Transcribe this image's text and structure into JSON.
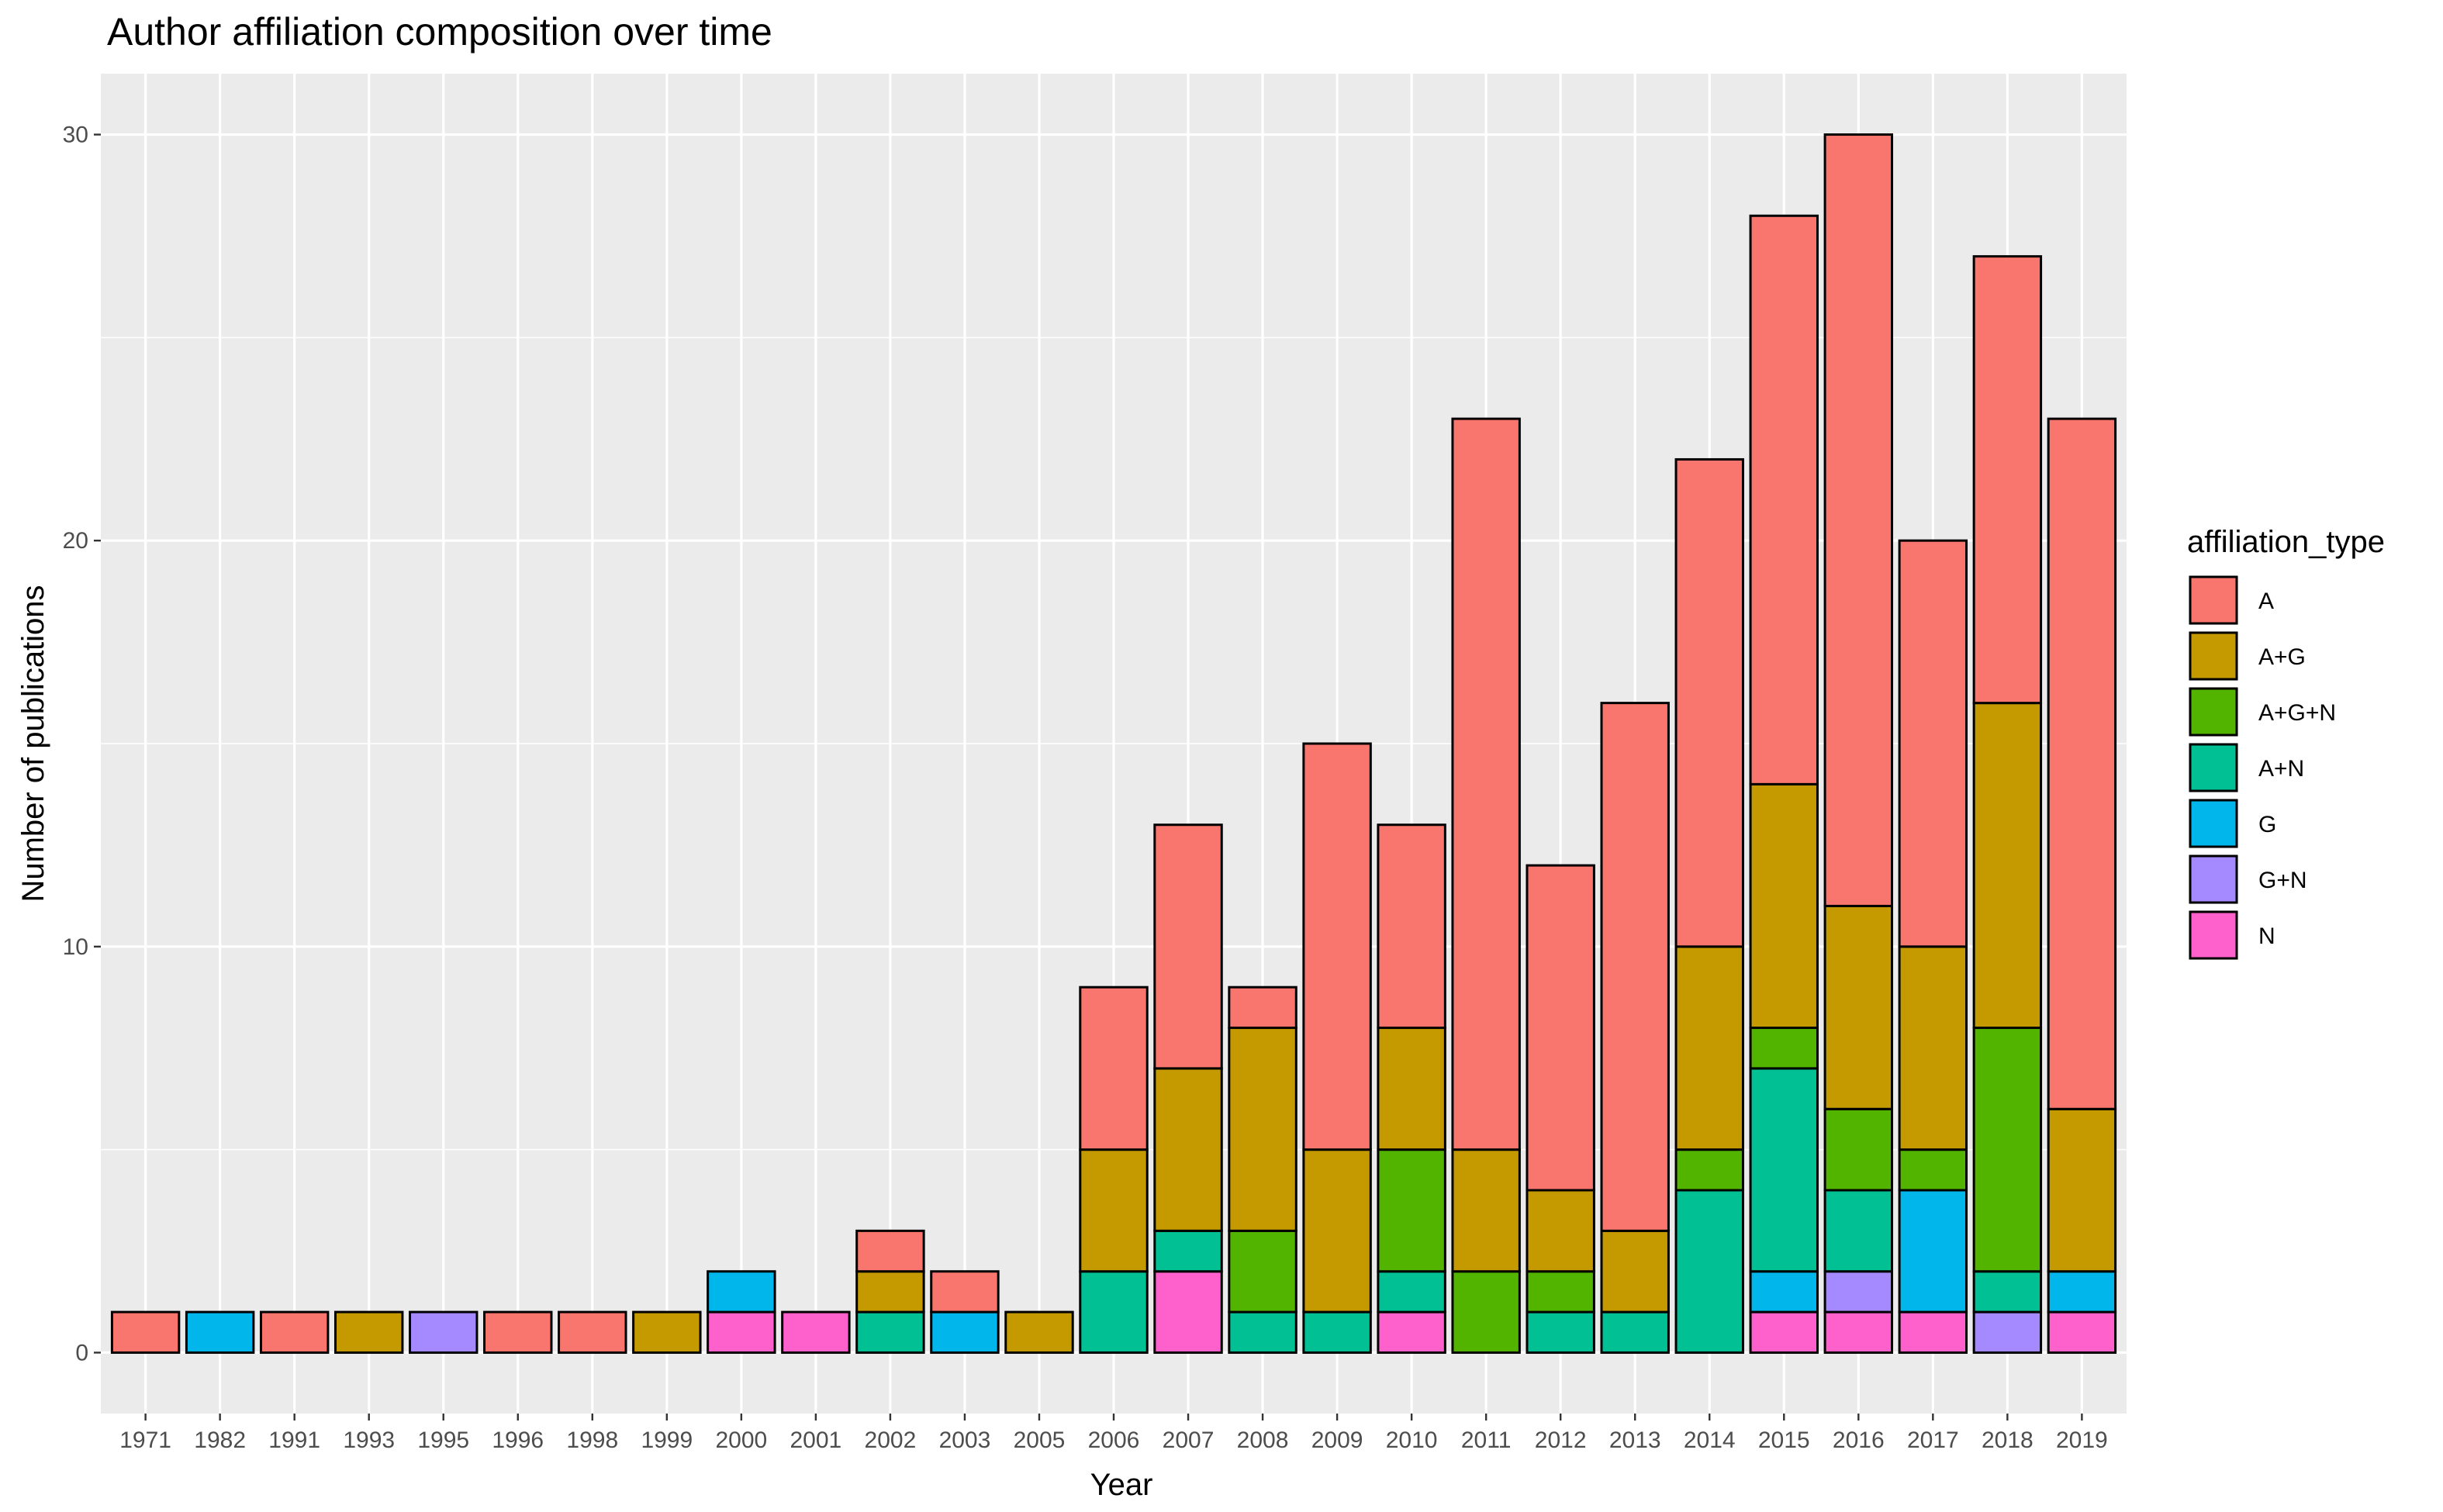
{
  "chart_data": {
    "type": "bar",
    "stacked": true,
    "title": "Author affiliation composition over time",
    "xlabel": "Year",
    "ylabel": "Number of publications",
    "ylim": [
      -1.5,
      31.5
    ],
    "yticks": [
      0,
      10,
      20,
      30
    ],
    "grid": true,
    "legend_title": "affiliation_type",
    "legend_position": "right",
    "categories": [
      "1971",
      "1982",
      "1991",
      "1993",
      "1995",
      "1996",
      "1998",
      "1999",
      "2000",
      "2001",
      "2002",
      "2003",
      "2005",
      "2006",
      "2007",
      "2008",
      "2009",
      "2010",
      "2011",
      "2012",
      "2013",
      "2014",
      "2015",
      "2016",
      "2017",
      "2018",
      "2019"
    ],
    "series": [
      {
        "name": "N",
        "color": "#FF61CC",
        "values": [
          0,
          0,
          0,
          0,
          0,
          0,
          0,
          0,
          1,
          1,
          0,
          0,
          0,
          0,
          2,
          0,
          0,
          1,
          0,
          0,
          0,
          0,
          1,
          1,
          1,
          0,
          1
        ]
      },
      {
        "name": "G+N",
        "color": "#A58AFF",
        "values": [
          0,
          0,
          0,
          0,
          1,
          0,
          0,
          0,
          0,
          0,
          0,
          0,
          0,
          0,
          0,
          0,
          0,
          0,
          0,
          0,
          0,
          0,
          0,
          1,
          0,
          1,
          0
        ]
      },
      {
        "name": "G",
        "color": "#00B6EB",
        "values": [
          0,
          1,
          0,
          0,
          0,
          0,
          0,
          0,
          1,
          0,
          0,
          1,
          0,
          0,
          0,
          0,
          0,
          0,
          0,
          0,
          0,
          0,
          1,
          0,
          3,
          0,
          1
        ]
      },
      {
        "name": "A+N",
        "color": "#00C094",
        "values": [
          0,
          0,
          0,
          0,
          0,
          0,
          0,
          0,
          0,
          0,
          1,
          0,
          0,
          2,
          1,
          1,
          1,
          1,
          0,
          1,
          1,
          4,
          5,
          2,
          0,
          1,
          0
        ]
      },
      {
        "name": "A+G+N",
        "color": "#53B400",
        "values": [
          0,
          0,
          0,
          0,
          0,
          0,
          0,
          0,
          0,
          0,
          0,
          0,
          0,
          0,
          0,
          2,
          0,
          3,
          2,
          1,
          0,
          1,
          1,
          2,
          1,
          6,
          0
        ]
      },
      {
        "name": "A+G",
        "color": "#C49A00",
        "values": [
          0,
          0,
          0,
          1,
          0,
          0,
          0,
          1,
          0,
          0,
          1,
          0,
          1,
          3,
          4,
          5,
          4,
          3,
          3,
          2,
          2,
          5,
          6,
          5,
          5,
          8,
          4
        ]
      },
      {
        "name": "A",
        "color": "#F8766D",
        "values": [
          1,
          0,
          1,
          0,
          0,
          1,
          1,
          0,
          0,
          0,
          1,
          1,
          0,
          4,
          6,
          1,
          10,
          5,
          18,
          8,
          13,
          12,
          14,
          19,
          10,
          11,
          17
        ]
      }
    ],
    "legend_order": [
      "A",
      "A+G",
      "A+G+N",
      "A+N",
      "G",
      "G+N",
      "N"
    ]
  },
  "colors": {
    "panel_background": "#EBEBEB",
    "grid": "#FFFFFF",
    "bar_outline": "#000000"
  }
}
